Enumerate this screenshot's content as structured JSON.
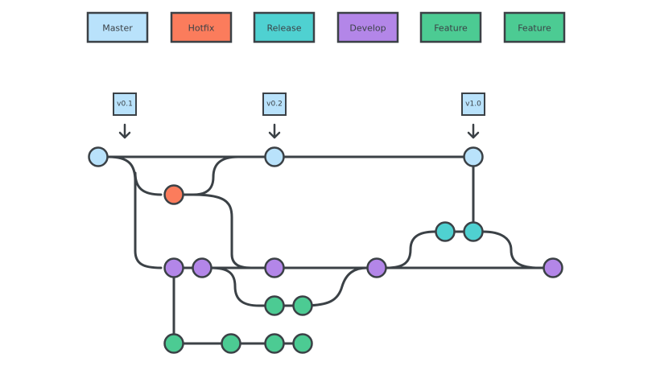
{
  "colors": {
    "stroke": "#3b4146",
    "master": "#b9e2fb",
    "hotfix": "#fb7c5c",
    "release": "#4fd1d1",
    "develop": "#b386e8",
    "feature": "#4ccb93"
  },
  "legend": [
    {
      "label": "Master",
      "branch": "master"
    },
    {
      "label": "Hotfix",
      "branch": "hotfix"
    },
    {
      "label": "Release",
      "branch": "release"
    },
    {
      "label": "Develop",
      "branch": "develop"
    },
    {
      "label": "Feature",
      "branch": "feature"
    },
    {
      "label": "Feature",
      "branch": "feature"
    }
  ],
  "tags": [
    {
      "label": "v0.1",
      "commit": "m1"
    },
    {
      "label": "v0.2",
      "commit": "m2"
    },
    {
      "label": "v1.0",
      "commit": "m3"
    }
  ],
  "commits": [
    {
      "id": "m1",
      "branch": "master"
    },
    {
      "id": "m2",
      "branch": "master"
    },
    {
      "id": "m3",
      "branch": "master"
    },
    {
      "id": "h1",
      "branch": "hotfix"
    },
    {
      "id": "r1",
      "branch": "release"
    },
    {
      "id": "r2",
      "branch": "release"
    },
    {
      "id": "d1",
      "branch": "develop"
    },
    {
      "id": "d2",
      "branch": "develop"
    },
    {
      "id": "d3",
      "branch": "develop"
    },
    {
      "id": "d4",
      "branch": "develop"
    },
    {
      "id": "d5",
      "branch": "develop"
    },
    {
      "id": "fa1",
      "branch": "feature"
    },
    {
      "id": "fa2",
      "branch": "feature"
    },
    {
      "id": "fb1",
      "branch": "feature"
    },
    {
      "id": "fb2",
      "branch": "feature"
    },
    {
      "id": "fb3",
      "branch": "feature"
    },
    {
      "id": "fb4",
      "branch": "feature"
    }
  ]
}
